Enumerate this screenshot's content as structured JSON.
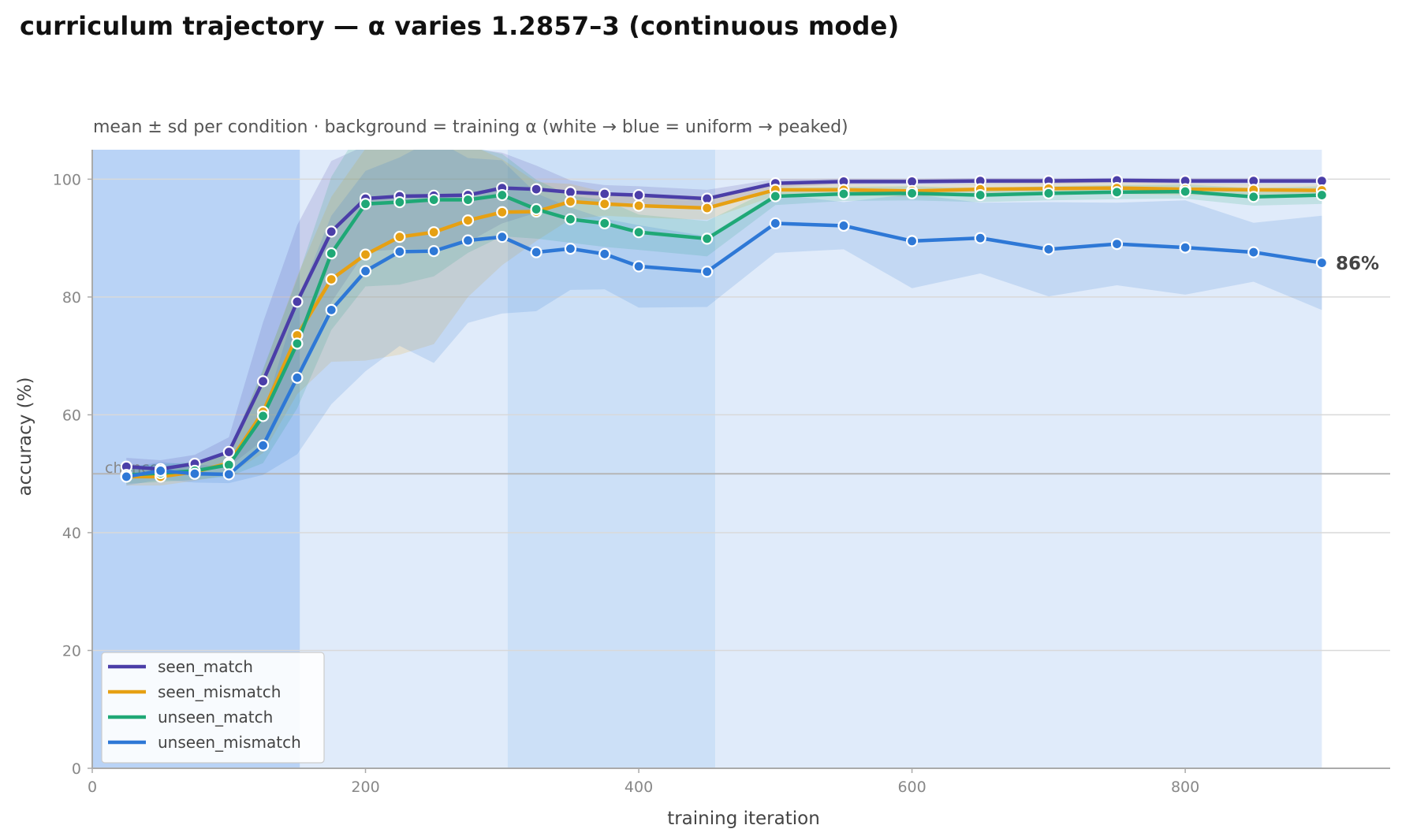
{
  "chart_data": {
    "type": "line",
    "title": "curriculum trajectory — α varies 1.2857–3 (continuous mode)",
    "subtitle": "mean ± sd per condition · background = training α (white → blue = uniform → peaked)",
    "xlabel": "training iteration",
    "ylabel": "accuracy (%)",
    "xlim": [
      0,
      950
    ],
    "ylim": [
      0,
      105
    ],
    "xticks": [
      0,
      200,
      400,
      600,
      800
    ],
    "yticks": [
      0,
      20,
      40,
      60,
      80,
      100
    ],
    "grid": "horizontal",
    "legend_position": "lower-left",
    "chance_level": 50,
    "chance_label": "chance",
    "end_label": "86%",
    "background_bands": [
      {
        "x0": 0,
        "x1": 152,
        "color": "#b9d3f6"
      },
      {
        "x0": 152,
        "x1": 304,
        "color": "#e0ebfa"
      },
      {
        "x0": 304,
        "x1": 456,
        "color": "#cce0f7"
      },
      {
        "x0": 456,
        "x1": 900,
        "color": "#e0ebfa"
      }
    ],
    "x": [
      25,
      50,
      75,
      100,
      125,
      150,
      175,
      200,
      225,
      250,
      275,
      300,
      325,
      350,
      375,
      400,
      450,
      500,
      550,
      600,
      650,
      700,
      750,
      800,
      850,
      900
    ],
    "series": [
      {
        "name": "seen_match",
        "color": "#4b3ea8",
        "values": [
          51.2,
          50.8,
          51.7,
          53.7,
          65.7,
          79.2,
          91.1,
          96.7,
          97.1,
          97.2,
          97.3,
          98.5,
          98.3,
          97.8,
          97.5,
          97.3,
          96.7,
          99.3,
          99.6,
          99.6,
          99.7,
          99.7,
          99.8,
          99.7,
          99.7,
          99.7
        ],
        "sd": [
          1.5,
          1.5,
          1.5,
          2.5,
          10,
          13,
          12,
          9,
          9,
          9,
          8,
          6,
          4,
          2,
          1.5,
          1.5,
          1.5,
          0.7,
          0.5,
          0.5,
          0.5,
          0.5,
          0.4,
          0.5,
          0.5,
          0.5
        ]
      },
      {
        "name": "seen_mismatch",
        "color": "#e6a013",
        "values": [
          49.5,
          49.5,
          50.3,
          51.8,
          60.5,
          73.5,
          83.0,
          87.2,
          90.2,
          91.0,
          93.0,
          94.4,
          94.5,
          96.2,
          95.8,
          95.5,
          95.1,
          98.2,
          98.2,
          98.0,
          98.3,
          98.4,
          98.5,
          98.3,
          98.2,
          98.1
        ],
        "sd": [
          1.5,
          1.5,
          1.5,
          2,
          7,
          10,
          14,
          18,
          20,
          19,
          13,
          9,
          5,
          3,
          2,
          2,
          2,
          1,
          1,
          1,
          1,
          1,
          1,
          1,
          1,
          1
        ]
      },
      {
        "name": "unseen_match",
        "color": "#1fa876",
        "values": [
          49.8,
          50.1,
          50.5,
          51.5,
          59.8,
          72.1,
          87.4,
          95.8,
          96.1,
          96.5,
          96.5,
          97.3,
          94.9,
          93.2,
          92.5,
          91.0,
          89.9,
          97.1,
          97.5,
          97.6,
          97.3,
          97.6,
          97.8,
          97.9,
          97.0,
          97.3
        ],
        "sd": [
          1.5,
          1.5,
          1.5,
          2,
          8,
          11,
          13,
          14,
          14,
          13,
          9,
          7,
          5,
          4,
          4,
          3,
          3,
          1.5,
          1.2,
          1.2,
          1.2,
          1.2,
          1.2,
          1.2,
          1.5,
          1.5
        ]
      },
      {
        "name": "unseen_mismatch",
        "color": "#2e78d6",
        "values": [
          49.5,
          50.5,
          50.0,
          49.9,
          54.8,
          66.3,
          77.8,
          84.4,
          87.7,
          87.8,
          89.6,
          90.2,
          87.6,
          88.2,
          87.3,
          85.2,
          84.3,
          92.5,
          92.1,
          89.5,
          90.0,
          88.1,
          89.0,
          88.4,
          87.6,
          85.8
        ],
        "sd": [
          1.5,
          1.5,
          1.5,
          1.5,
          5,
          13,
          16,
          17,
          16,
          19,
          14,
          13,
          10,
          7,
          6,
          7,
          6,
          5,
          4,
          8,
          6,
          8,
          7,
          8,
          5,
          8
        ]
      }
    ]
  }
}
